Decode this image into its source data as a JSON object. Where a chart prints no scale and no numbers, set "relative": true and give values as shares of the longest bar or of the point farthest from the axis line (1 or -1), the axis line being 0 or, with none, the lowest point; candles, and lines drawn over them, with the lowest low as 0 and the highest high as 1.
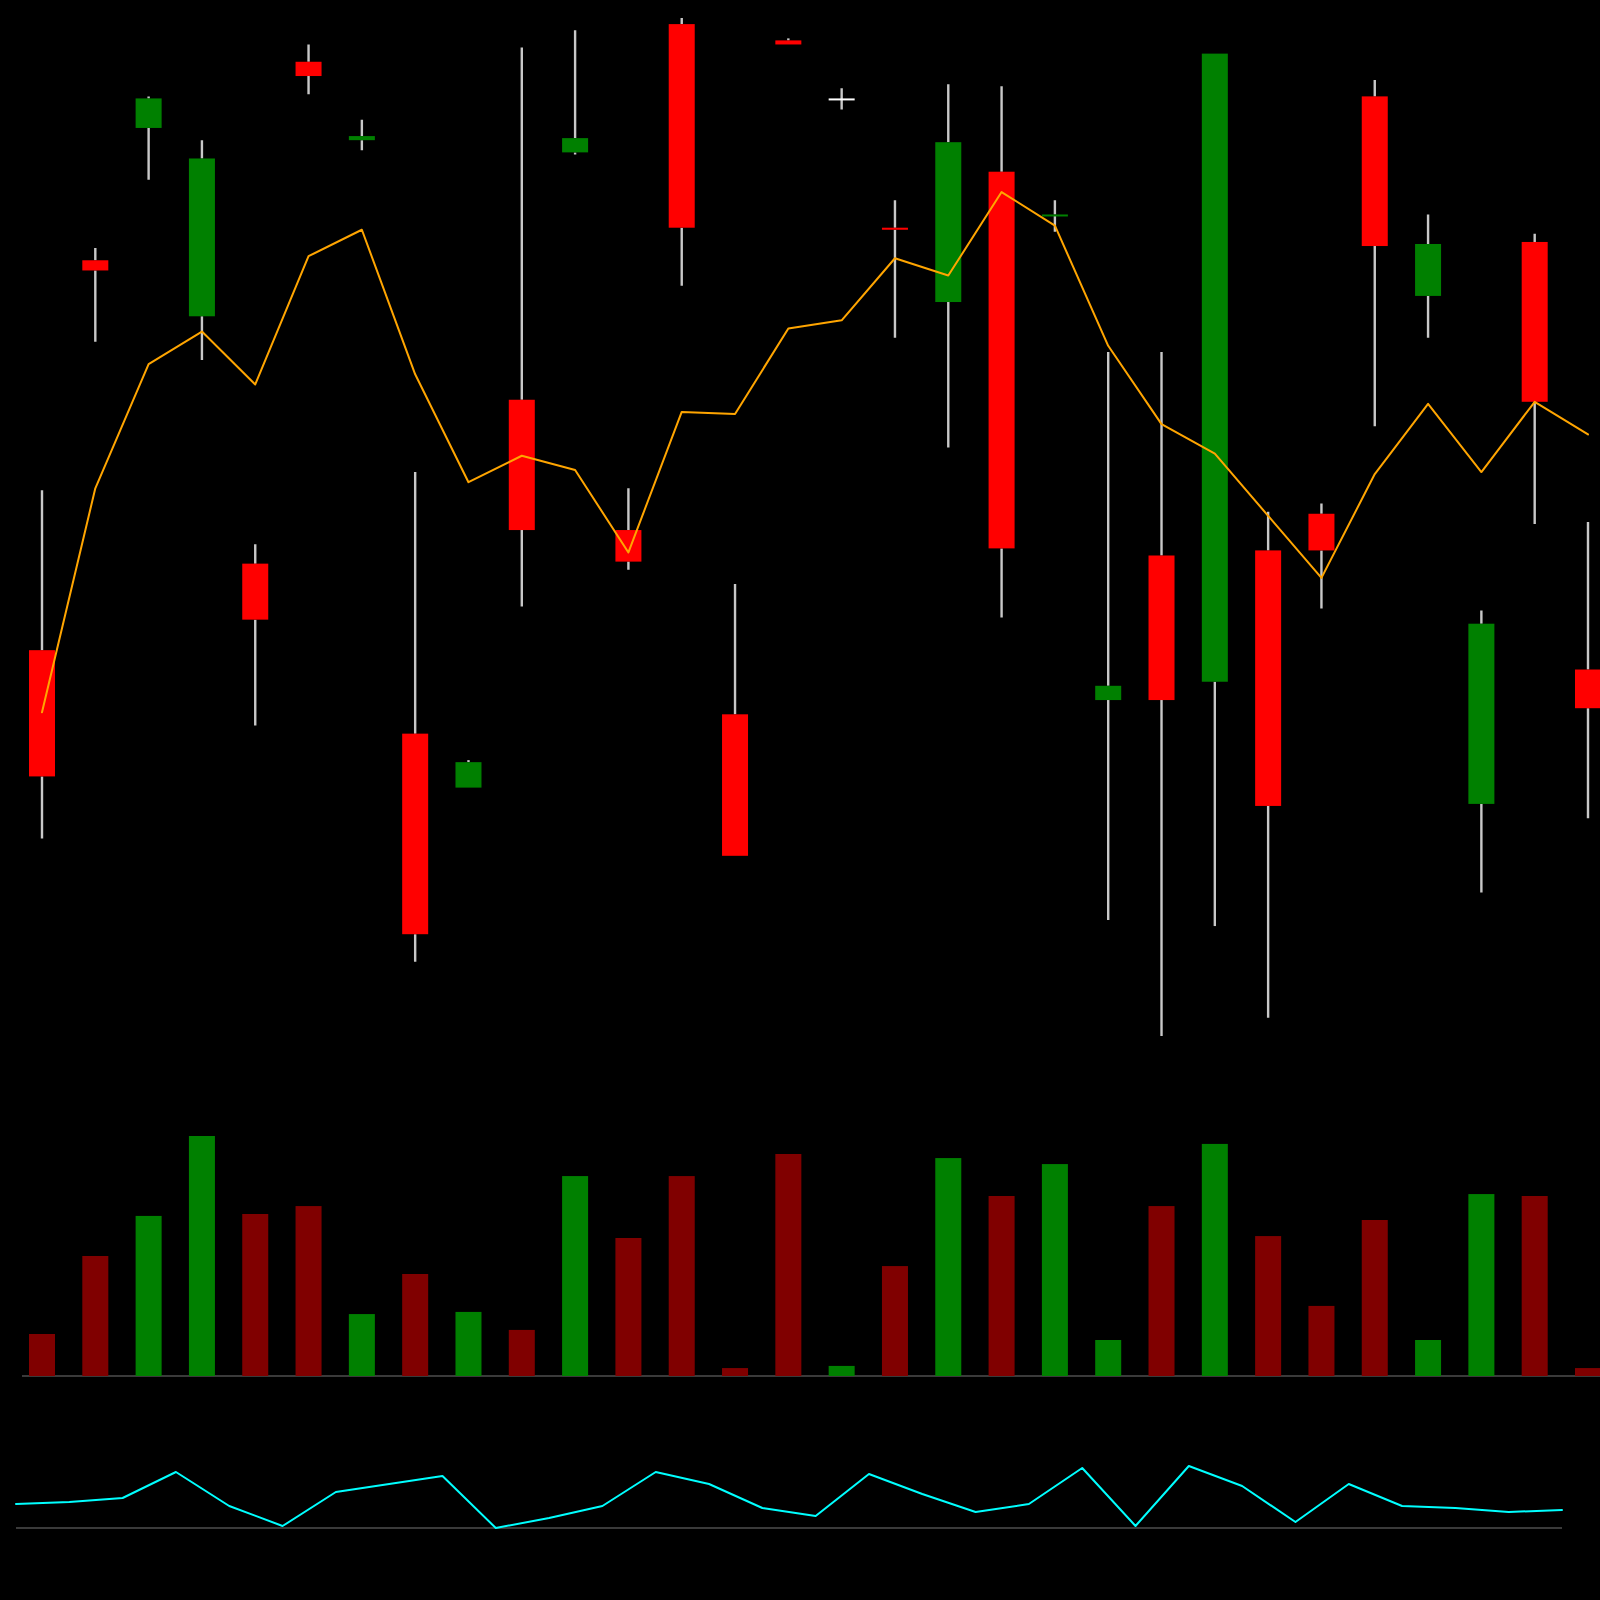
{
  "chart_data": [
    {
      "type": "candlestick",
      "relative": true,
      "categories": [
        null,
        null,
        null,
        null,
        null,
        null,
        null,
        null,
        null,
        null,
        null,
        null,
        null,
        null,
        null,
        null,
        null,
        null,
        null,
        null,
        null,
        null,
        null,
        null,
        null,
        null,
        null,
        null,
        null,
        null
      ],
      "ohlc": [
        [
          0.379,
          0.536,
          0.194,
          0.255
        ],
        [
          0.762,
          0.774,
          0.682,
          0.752
        ],
        [
          0.892,
          0.923,
          0.841,
          0.921
        ],
        [
          0.707,
          0.88,
          0.664,
          0.862
        ],
        [
          0.464,
          0.483,
          0.305,
          0.409
        ],
        [
          0.957,
          0.974,
          0.925,
          0.943
        ],
        [
          0.88,
          0.9,
          0.87,
          0.884
        ],
        [
          0.297,
          0.554,
          0.073,
          0.1
        ],
        [
          0.244,
          0.271,
          0.244,
          0.269
        ],
        [
          0.625,
          0.971,
          0.422,
          0.497
        ],
        [
          0.868,
          0.988,
          0.866,
          0.882
        ],
        [
          0.497,
          0.538,
          0.458,
          0.466
        ],
        [
          0.994,
          1,
          0.737,
          0.794
        ],
        [
          0.316,
          0.444,
          0.177,
          0.177
        ],
        [
          0.978,
          0.98,
          0.974,
          0.974
        ],
        [
          0.921,
          0.931,
          0.91,
          0.921
        ],
        [
          0.794,
          0.821,
          0.686,
          0.792
        ],
        [
          0.721,
          0.935,
          0.578,
          0.878
        ],
        [
          0.849,
          0.933,
          0.411,
          0.479
        ],
        [
          0.806,
          0.821,
          0.79,
          0.807
        ],
        [
          0.33,
          0.672,
          0.114,
          0.344
        ],
        [
          0.472,
          0.672,
          0,
          0.33
        ],
        [
          0.348,
          0.965,
          0.108,
          0.965
        ],
        [
          0.477,
          0.515,
          0.018,
          0.226
        ],
        [
          0.513,
          0.523,
          0.42,
          0.477
        ],
        [
          0.923,
          0.939,
          0.599,
          0.776
        ],
        [
          0.727,
          0.807,
          0.686,
          0.778
        ],
        [
          0.228,
          0.418,
          0.141,
          0.405
        ],
        [
          0.78,
          0.788,
          0.503,
          0.623
        ],
        [
          0.36,
          0.505,
          0.214,
          0.322
        ]
      ],
      "colors": [
        "#ff0000",
        "#ff0000",
        "#008000",
        "#008000",
        "#ff0000",
        "#ff0000",
        "#008000",
        "#ff0000",
        "#008000",
        "#ff0000",
        "#008000",
        "#ff0000",
        "#ff0000",
        "#ff0000",
        "#ff0000",
        "#ffffff",
        "#ff0000",
        "#008000",
        "#ff0000",
        "#008000",
        "#008000",
        "#ff0000",
        "#008000",
        "#ff0000",
        "#ff0000",
        "#ff0000",
        "#008000",
        "#008000",
        "#ff0000",
        "#ff0000"
      ],
      "series": [
        {
          "type": "line",
          "color": "#ffa500",
          "values": [
            0.318,
            0.538,
            0.66,
            0.692,
            0.64,
            0.766,
            0.792,
            0.65,
            0.544,
            0.57,
            0.556,
            0.475,
            0.613,
            0.611,
            0.695,
            0.703,
            0.764,
            0.747,
            0.829,
            0.796,
            0.678,
            0.601,
            0.572,
            0.511,
            0.45,
            0.552,
            0.621,
            0.554,
            0.623,
            0.591
          ]
        }
      ]
    },
    {
      "type": "bar",
      "relative": true,
      "categories": [
        null,
        null,
        null,
        null,
        null,
        null,
        null,
        null,
        null,
        null,
        null,
        null,
        null,
        null,
        null,
        null,
        null,
        null,
        null,
        null,
        null,
        null,
        null,
        null,
        null,
        null,
        null,
        null,
        null,
        null
      ],
      "values": [
        0.175,
        0.5,
        0.667,
        1,
        0.675,
        0.708,
        0.258,
        0.425,
        0.267,
        0.192,
        0.833,
        0.575,
        0.833,
        0.033,
        0.925,
        0.042,
        0.458,
        0.908,
        0.75,
        0.883,
        0.15,
        0.708,
        0.967,
        0.583,
        0.292,
        0.65,
        0.15,
        0.758,
        0.75,
        0.033
      ],
      "colors": [
        "#800000",
        "#800000",
        "#008000",
        "#008000",
        "#800000",
        "#800000",
        "#008000",
        "#800000",
        "#008000",
        "#800000",
        "#008000",
        "#800000",
        "#800000",
        "#800000",
        "#800000",
        "#008000",
        "#800000",
        "#008000",
        "#800000",
        "#008000",
        "#008000",
        "#800000",
        "#008000",
        "#800000",
        "#800000",
        "#800000",
        "#008000",
        "#008000",
        "#800000",
        "#800000"
      ]
    },
    {
      "type": "line",
      "relative": true,
      "categories": [
        null,
        null,
        null,
        null,
        null,
        null,
        null,
        null,
        null,
        null,
        null,
        null,
        null,
        null,
        null,
        null,
        null,
        null,
        null,
        null,
        null,
        null,
        null,
        null,
        null,
        null,
        null,
        null,
        null,
        null
      ],
      "color": "#00ffff",
      "values": [
        0.387,
        0.419,
        0.484,
        0.903,
        0.355,
        0.032,
        0.581,
        0.71,
        0.839,
        0,
        0.161,
        0.355,
        0.903,
        0.71,
        0.323,
        0.194,
        0.871,
        0.548,
        0.258,
        0.387,
        0.968,
        0.032,
        1,
        0.677,
        0.097,
        0.71,
        0.355,
        0.323,
        0.258,
        0.29
      ]
    }
  ]
}
